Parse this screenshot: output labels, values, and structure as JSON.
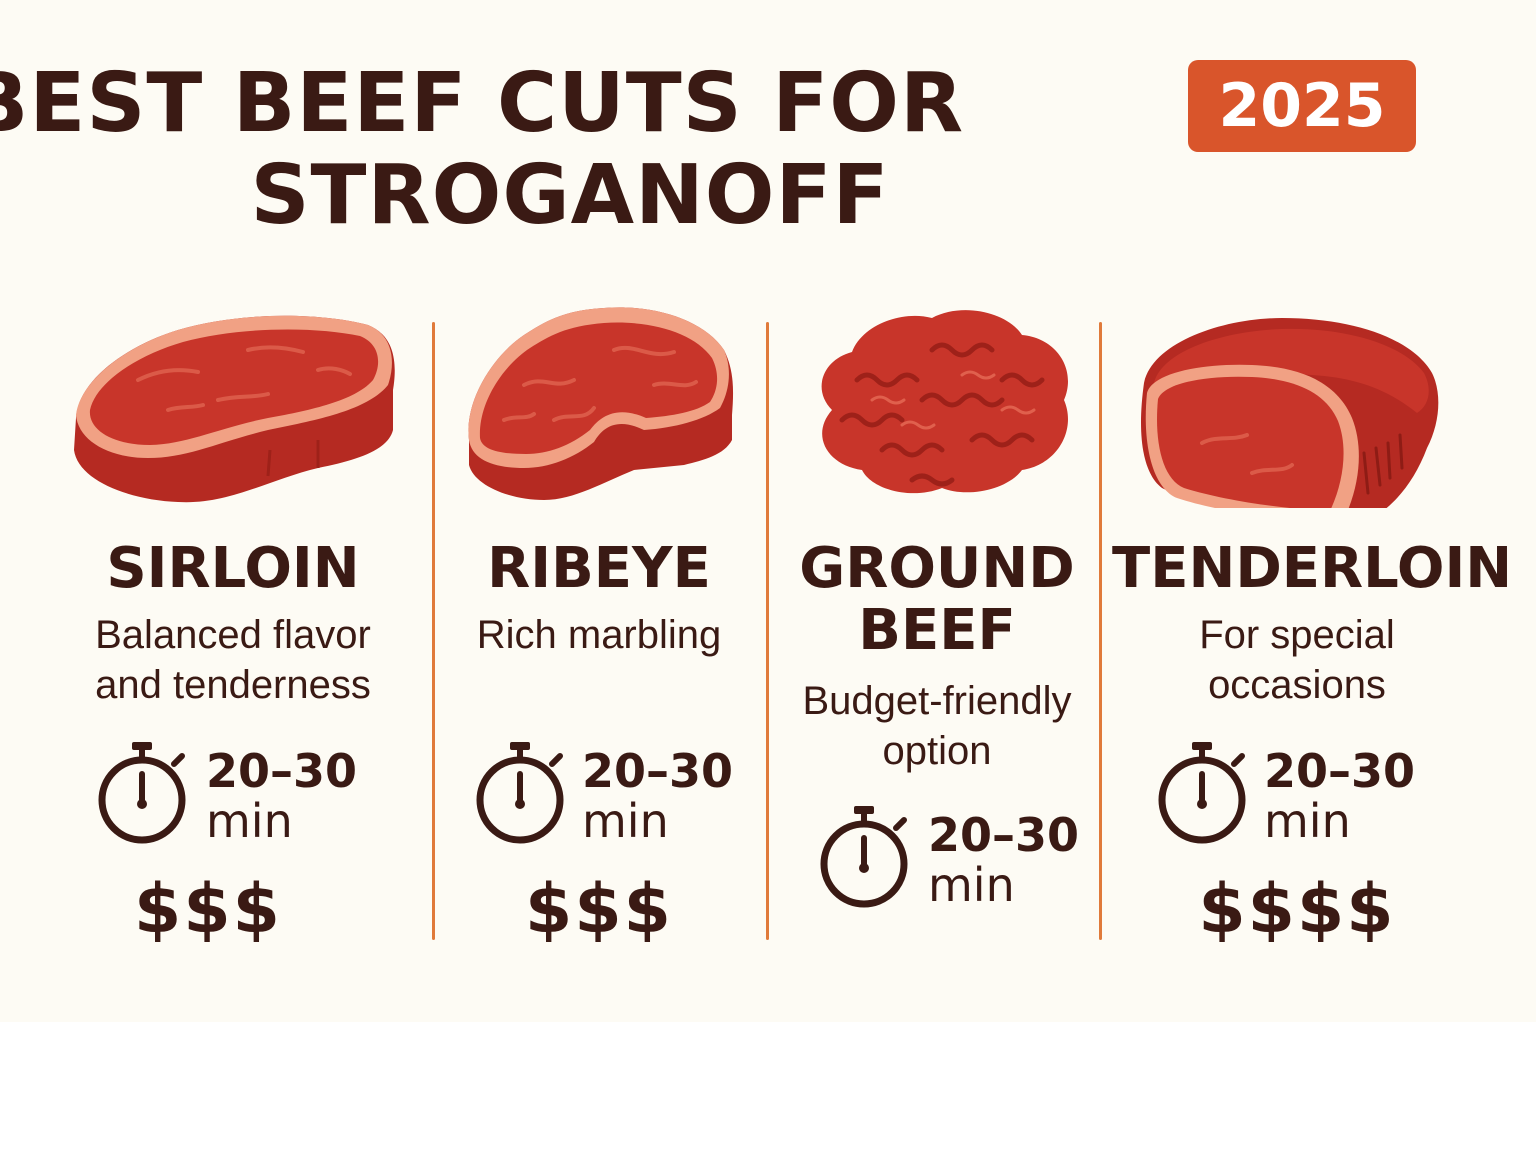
{
  "header": {
    "title_line1": "BEST BEEF CUTS FOR",
    "title_line2": "STROGANOFF",
    "year_badge": "2025"
  },
  "colors": {
    "background": "#fdfbf4",
    "text": "#3a1a14",
    "accent": "#d9552b",
    "divider": "#e07a3a",
    "meat": "#c8352a"
  },
  "cuts": [
    {
      "icon": "sirloin-steak-icon",
      "name": "SIRLOIN",
      "description": "Balanced flavor and tenderness",
      "time_range": "20–30",
      "time_unit": "min",
      "price": "$$$"
    },
    {
      "icon": "ribeye-steak-icon",
      "name": "RIBEYE",
      "description": "Rich marbling",
      "time_range": "20–30",
      "time_unit": "min",
      "price": "$$$"
    },
    {
      "icon": "ground-beef-icon",
      "name": "GROUND BEEF",
      "description": "Budget-friendly option",
      "time_range": "20–30",
      "time_unit": "min",
      "price": ""
    },
    {
      "icon": "tenderloin-roast-icon",
      "name": "TENDERLOIN",
      "description": "For special occasions",
      "time_range": "20–30",
      "time_unit": "min",
      "price": "$$$$"
    }
  ]
}
